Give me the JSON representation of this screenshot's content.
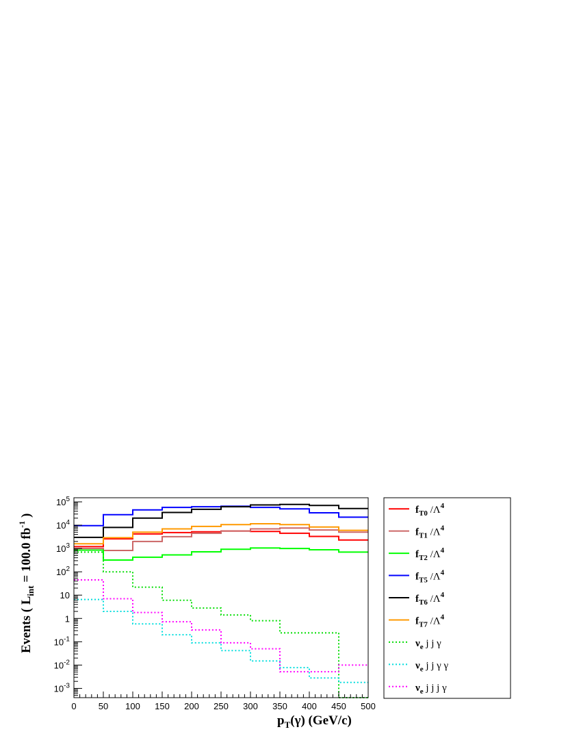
{
  "chart_data": {
    "type": "line",
    "style": "step-histogram",
    "xlabel": {
      "main": "p",
      "sub": "T",
      "rest": "(γ) (GeV/c)"
    },
    "ylabel": {
      "pre": "Events  ( L",
      "sub": "int",
      "mid": " = 100.0 fb",
      "sup": "-1",
      "post": " )"
    },
    "xlim": [
      0,
      500
    ],
    "ylim": [
      0.0004,
      150000
    ],
    "yscale": "log",
    "grid": false,
    "legend_position": "right",
    "x_edges": [
      0,
      50,
      100,
      150,
      200,
      250,
      300,
      350,
      400,
      450,
      500
    ],
    "x_ticks": [
      0,
      50,
      100,
      150,
      200,
      250,
      300,
      350,
      400,
      450,
      500
    ],
    "x_tick_labels": [
      "0",
      "50",
      "100",
      "150",
      "200",
      "250",
      "300",
      "350",
      "400",
      "450",
      "500"
    ],
    "y_ticks": [
      {
        "value": 100000,
        "base": "10",
        "exp": "5"
      },
      {
        "value": 10000,
        "base": "10",
        "exp": "4"
      },
      {
        "value": 1000,
        "base": "10",
        "exp": "3"
      },
      {
        "value": 100,
        "base": "10",
        "exp": "2"
      },
      {
        "value": 10,
        "base": "10",
        "exp": ""
      },
      {
        "value": 1,
        "base": "1",
        "exp": ""
      },
      {
        "value": 0.1,
        "base": "10",
        "exp": "-1"
      },
      {
        "value": 0.01,
        "base": "10",
        "exp": "-2"
      },
      {
        "value": 0.001,
        "base": "10",
        "exp": "-3"
      }
    ],
    "series": [
      {
        "id": "fT0",
        "label_main": "f",
        "label_sub": "T0",
        "label_tail": " /Λ",
        "label_sup": "4",
        "color": "#ff0000",
        "dash": "",
        "values": [
          1200,
          2600,
          4200,
          4800,
          5200,
          5600,
          5400,
          4500,
          3300,
          2300
        ]
      },
      {
        "id": "fT1",
        "label_main": "f",
        "label_sub": "T1",
        "label_tail": " /Λ",
        "label_sup": "4",
        "color": "#cc6666",
        "dash": "",
        "values": [
          1000,
          820,
          2000,
          3200,
          4500,
          5600,
          6900,
          7500,
          6200,
          5000
        ]
      },
      {
        "id": "fT2",
        "label_main": "f",
        "label_sub": "T2",
        "label_tail": " /Λ",
        "label_sup": "4",
        "color": "#00ff00",
        "dash": "",
        "values": [
          850,
          320,
          420,
          530,
          720,
          930,
          1050,
          1000,
          880,
          700
        ]
      },
      {
        "id": "fT5",
        "label_main": "f",
        "label_sub": "T5",
        "label_tail": " /Λ",
        "label_sup": "4",
        "color": "#0000ff",
        "dash": "",
        "values": [
          9500,
          28000,
          45000,
          58000,
          62000,
          65000,
          58000,
          50000,
          34000,
          22000
        ]
      },
      {
        "id": "fT6",
        "label_main": "f",
        "label_sub": "T6",
        "label_tail": " /Λ",
        "label_sup": "4",
        "color": "#000000",
        "dash": "",
        "values": [
          3000,
          8000,
          20000,
          35000,
          48000,
          62000,
          74000,
          78000,
          70000,
          52000
        ]
      },
      {
        "id": "fT7",
        "label_main": "f",
        "label_sub": "T7",
        "label_tail": " /Λ",
        "label_sup": "4",
        "color": "#ff9900",
        "dash": "",
        "values": [
          1600,
          2900,
          5000,
          6900,
          8800,
          10500,
          11500,
          10500,
          8300,
          6000
        ]
      },
      {
        "id": "nu_jj_a",
        "label_main": "ν",
        "label_sub": "e",
        "label_tail": " j j  γ",
        "label_sup": "",
        "color": "#00dd00",
        "dash": "2,3",
        "values": [
          700,
          100,
          22,
          6,
          2.8,
          1.4,
          0.8,
          0.24,
          0.24,
          0.0003
        ]
      },
      {
        "id": "nu_jj_aa",
        "label_main": "ν",
        "label_sub": "e",
        "label_tail": " j j  γ  γ",
        "label_sup": "",
        "color": "#00dddd",
        "dash": "2,3",
        "values": [
          6.5,
          2,
          0.58,
          0.2,
          0.09,
          0.042,
          0.015,
          0.0078,
          0.0028,
          0.0018
        ]
      },
      {
        "id": "nu_jjj_a",
        "label_main": "ν",
        "label_sub": "e",
        "label_tail": " j j j  γ",
        "label_sup": "",
        "color": "#ff00ff",
        "dash": "2,3",
        "values": [
          45,
          7,
          1.8,
          0.72,
          0.32,
          0.09,
          0.05,
          0.0052,
          0.0052,
          0.01
        ]
      }
    ]
  }
}
